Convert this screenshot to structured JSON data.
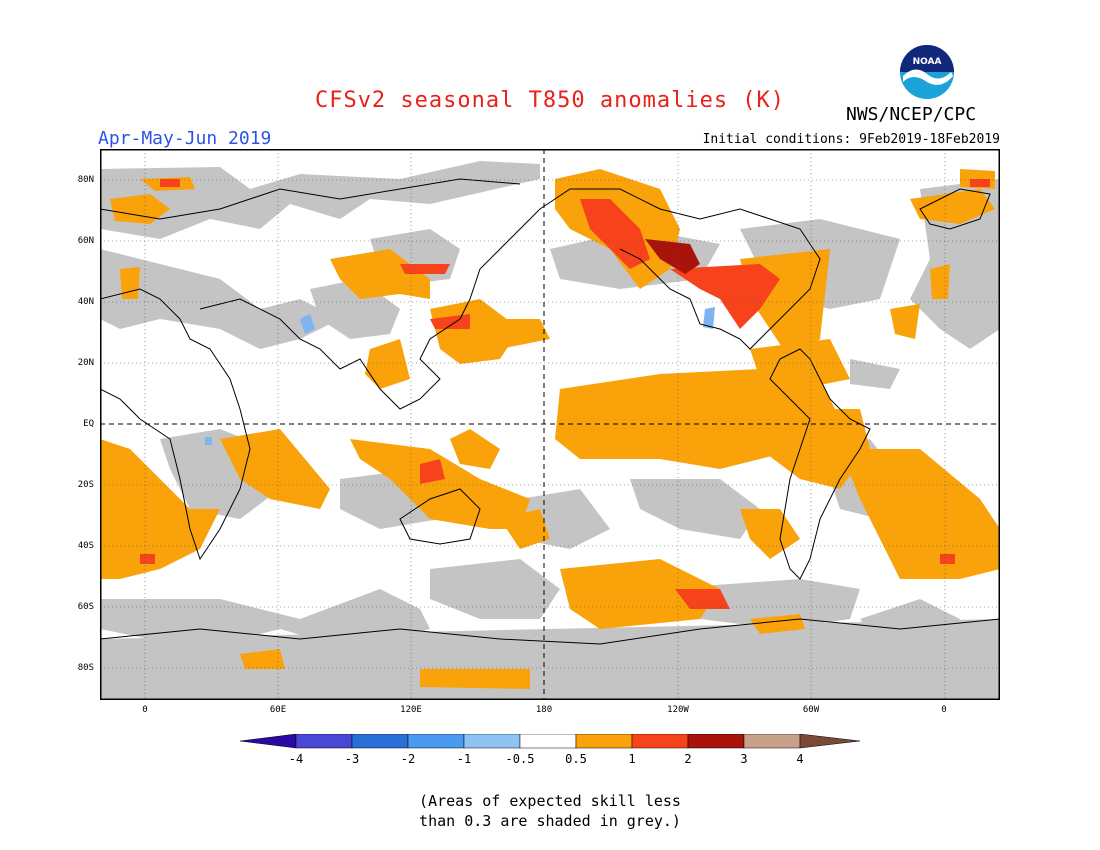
{
  "header": {
    "title": "CFSv2 seasonal T850 anomalies (K)",
    "season": "Apr-May-Jun 2019",
    "agency": "NWS/NCEP/CPC",
    "initial_conditions": "Initial conditions: 9Feb2019-18Feb2019",
    "logo_text": "NOAA"
  },
  "map": {
    "lat_labels": [
      "80N",
      "60N",
      "40N",
      "20N",
      "EQ",
      "20S",
      "40S",
      "60S",
      "80S"
    ],
    "lon_labels": [
      "0",
      "60E",
      "120E",
      "180",
      "120W",
      "60W",
      "0"
    ],
    "colors": {
      "grey": "#c4c4c4",
      "orange": "#f9a20a",
      "red_orange": "#f7431b",
      "dark_red": "#a8140b",
      "light_blue": "#7eb4ef",
      "coast": "#000000"
    }
  },
  "colorbar": {
    "labels": [
      "-4",
      "-3",
      "-2",
      "-1",
      "-0.5",
      "0.5",
      "1",
      "2",
      "3",
      "4"
    ],
    "colors": [
      "#2a0aa5",
      "#4a46d6",
      "#2a6fd8",
      "#4a9af0",
      "#8ec4f2",
      "#ffffff",
      "#f9a20a",
      "#f7431b",
      "#a8140b",
      "#c9a08a",
      "#7a4a37"
    ]
  },
  "note": {
    "line1": "(Areas of expected skill less",
    "line2": "than 0.3 are shaded in grey.)"
  }
}
